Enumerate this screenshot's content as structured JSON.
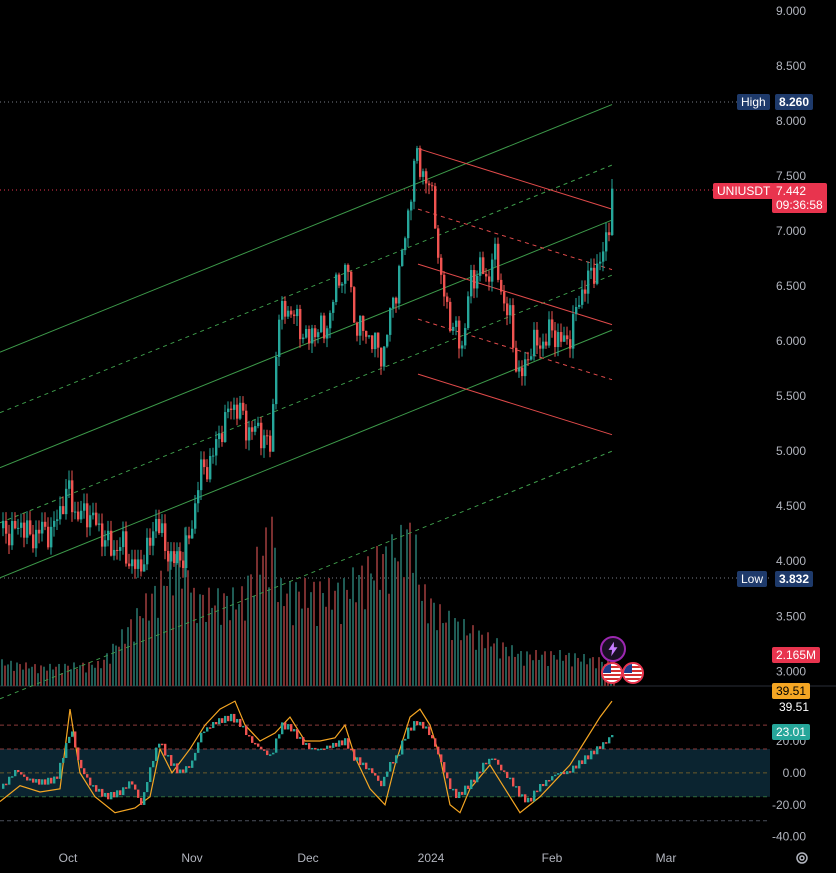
{
  "symbol": "UNIUSDT",
  "last_price": "7.442",
  "countdown": "09:36:58",
  "high": {
    "label": "High",
    "value": "8.260"
  },
  "low": {
    "label": "Low",
    "value": "3.832"
  },
  "volume": "2.165M",
  "colors": {
    "up": "#26a69a",
    "down": "#ef5350",
    "high_bg": "#1e3a6b",
    "price_tag": "#e8344e",
    "channel_green": "#3d9a4a",
    "channel_red": "#e04a4a",
    "osc_line": "#f5a623",
    "osc_fill": "#0b2430"
  },
  "chart_data": {
    "type": "candlestick",
    "price_axis": {
      "ticks": [
        "9.000",
        "8.500",
        "8.000",
        "7.500",
        "7.000",
        "6.500",
        "6.000",
        "5.500",
        "5.000",
        "4.500",
        "4.000",
        "3.500",
        "3.000"
      ],
      "range": [
        2.83,
        9.1
      ]
    },
    "time_axis": {
      "labels": [
        "Oct",
        "Nov",
        "Dec",
        "2024",
        "Feb",
        "Mar"
      ]
    },
    "oscillator": {
      "ticks": [
        "20.00",
        "0.00",
        "-20.00",
        "-40.00"
      ],
      "labels": {
        "upper": "39.51",
        "current": "23.01"
      },
      "range": [
        -44,
        52
      ],
      "levels": [
        30,
        15,
        0,
        -15,
        -30
      ]
    },
    "trend_points": [
      [
        0,
        4.3
      ],
      [
        10,
        4.25
      ],
      [
        20,
        4.35
      ],
      [
        30,
        4.2
      ],
      [
        40,
        4.3
      ],
      [
        50,
        4.25
      ],
      [
        60,
        4.5
      ],
      [
        68,
        4.65
      ],
      [
        75,
        4.4
      ],
      [
        85,
        4.45
      ],
      [
        95,
        4.35
      ],
      [
        103,
        4.2
      ],
      [
        112,
        4.1
      ],
      [
        122,
        4.15
      ],
      [
        130,
        3.95
      ],
      [
        138,
        3.95
      ],
      [
        147,
        4.1
      ],
      [
        155,
        4.4
      ],
      [
        163,
        4.15
      ],
      [
        172,
        4.0
      ],
      [
        182,
        4.05
      ],
      [
        190,
        4.25
      ],
      [
        198,
        4.8
      ],
      [
        206,
        4.85
      ],
      [
        215,
        5.05
      ],
      [
        222,
        5.25
      ],
      [
        230,
        5.4
      ],
      [
        238,
        5.4
      ],
      [
        245,
        5.2
      ],
      [
        253,
        5.2
      ],
      [
        262,
        5.15
      ],
      [
        270,
        5.0
      ],
      [
        276,
        6.15
      ],
      [
        284,
        6.3
      ],
      [
        292,
        6.25
      ],
      [
        300,
        6.1
      ],
      [
        308,
        6.0
      ],
      [
        316,
        6.15
      ],
      [
        324,
        6.05
      ],
      [
        332,
        6.4
      ],
      [
        340,
        6.6
      ],
      [
        347,
        6.65
      ],
      [
        353,
        6.2
      ],
      [
        360,
        6.1
      ],
      [
        368,
        6.05
      ],
      [
        375,
        5.95
      ],
      [
        382,
        5.85
      ],
      [
        390,
        6.3
      ],
      [
        397,
        6.55
      ],
      [
        403,
        6.9
      ],
      [
        409,
        7.3
      ],
      [
        415,
        7.7
      ],
      [
        421,
        7.55
      ],
      [
        427,
        7.4
      ],
      [
        433,
        7.3
      ],
      [
        438,
        6.6
      ],
      [
        444,
        6.4
      ],
      [
        450,
        6.15
      ],
      [
        456,
        6.05
      ],
      [
        462,
        5.95
      ],
      [
        468,
        6.5
      ],
      [
        474,
        6.6
      ],
      [
        480,
        6.7
      ],
      [
        486,
        6.5
      ],
      [
        492,
        6.85
      ],
      [
        497,
        6.6
      ],
      [
        503,
        6.35
      ],
      [
        509,
        6.2
      ],
      [
        514,
        5.85
      ],
      [
        519,
        5.65
      ],
      [
        525,
        5.8
      ],
      [
        531,
        6.0
      ],
      [
        537,
        5.95
      ],
      [
        543,
        6.0
      ],
      [
        549,
        6.1
      ],
      [
        555,
        6.05
      ],
      [
        561,
        6.0
      ],
      [
        567,
        6.0
      ],
      [
        573,
        6.2
      ],
      [
        579,
        6.4
      ],
      [
        585,
        6.55
      ],
      [
        591,
        6.6
      ],
      [
        597,
        6.7
      ],
      [
        603,
        6.8
      ],
      [
        608,
        7.1
      ],
      [
        612,
        7.45
      ]
    ],
    "volume_points": [
      [
        0,
        0.15
      ],
      [
        40,
        0.12
      ],
      [
        100,
        0.14
      ],
      [
        155,
        0.6
      ],
      [
        185,
        0.9
      ],
      [
        192,
        0.55
      ],
      [
        240,
        0.55
      ],
      [
        272,
        1.0
      ],
      [
        278,
        0.6
      ],
      [
        340,
        0.6
      ],
      [
        400,
        0.9
      ],
      [
        412,
        1.0
      ],
      [
        420,
        0.6
      ],
      [
        440,
        0.45
      ],
      [
        470,
        0.35
      ],
      [
        520,
        0.2
      ],
      [
        560,
        0.2
      ],
      [
        612,
        0.15
      ]
    ],
    "oscillator_points": [
      [
        0,
        -10
      ],
      [
        15,
        2
      ],
      [
        25,
        -4
      ],
      [
        40,
        -6
      ],
      [
        55,
        -4
      ],
      [
        70,
        28
      ],
      [
        78,
        5
      ],
      [
        90,
        -8
      ],
      [
        105,
        -15
      ],
      [
        120,
        -12
      ],
      [
        130,
        -5
      ],
      [
        140,
        -20
      ],
      [
        150,
        5
      ],
      [
        158,
        20
      ],
      [
        168,
        8
      ],
      [
        178,
        0
      ],
      [
        190,
        5
      ],
      [
        200,
        25
      ],
      [
        215,
        32
      ],
      [
        230,
        35
      ],
      [
        240,
        30
      ],
      [
        250,
        20
      ],
      [
        260,
        15
      ],
      [
        270,
        10
      ],
      [
        280,
        30
      ],
      [
        290,
        28
      ],
      [
        300,
        20
      ],
      [
        310,
        15
      ],
      [
        320,
        15
      ],
      [
        335,
        18
      ],
      [
        345,
        20
      ],
      [
        352,
        10
      ],
      [
        362,
        5
      ],
      [
        372,
        0
      ],
      [
        380,
        -8
      ],
      [
        388,
        5
      ],
      [
        396,
        10
      ],
      [
        405,
        25
      ],
      [
        415,
        32
      ],
      [
        425,
        28
      ],
      [
        432,
        20
      ],
      [
        438,
        10
      ],
      [
        448,
        -8
      ],
      [
        456,
        -15
      ],
      [
        464,
        -10
      ],
      [
        472,
        -5
      ],
      [
        482,
        5
      ],
      [
        492,
        10
      ],
      [
        500,
        2
      ],
      [
        510,
        -5
      ],
      [
        520,
        -15
      ],
      [
        528,
        -18
      ],
      [
        536,
        -10
      ],
      [
        546,
        -5
      ],
      [
        556,
        0
      ],
      [
        566,
        0
      ],
      [
        576,
        5
      ],
      [
        586,
        10
      ],
      [
        596,
        15
      ],
      [
        606,
        20
      ],
      [
        612,
        25
      ]
    ],
    "oscillator_upper": [
      [
        0,
        -18
      ],
      [
        20,
        -8
      ],
      [
        40,
        -12
      ],
      [
        60,
        -10
      ],
      [
        70,
        40
      ],
      [
        80,
        0
      ],
      [
        95,
        -15
      ],
      [
        115,
        -25
      ],
      [
        135,
        -22
      ],
      [
        150,
        -15
      ],
      [
        160,
        15
      ],
      [
        172,
        0
      ],
      [
        190,
        15
      ],
      [
        205,
        30
      ],
      [
        220,
        40
      ],
      [
        235,
        45
      ],
      [
        245,
        30
      ],
      [
        260,
        20
      ],
      [
        275,
        25
      ],
      [
        290,
        35
      ],
      [
        305,
        20
      ],
      [
        320,
        20
      ],
      [
        335,
        22
      ],
      [
        345,
        30
      ],
      [
        355,
        10
      ],
      [
        370,
        -10
      ],
      [
        385,
        -20
      ],
      [
        395,
        5
      ],
      [
        410,
        35
      ],
      [
        420,
        40
      ],
      [
        430,
        30
      ],
      [
        440,
        10
      ],
      [
        450,
        -20
      ],
      [
        460,
        -25
      ],
      [
        470,
        -10
      ],
      [
        490,
        5
      ],
      [
        505,
        -10
      ],
      [
        520,
        -25
      ],
      [
        530,
        -20
      ],
      [
        540,
        -15
      ],
      [
        555,
        -5
      ],
      [
        570,
        5
      ],
      [
        585,
        20
      ],
      [
        600,
        35
      ],
      [
        612,
        45
      ]
    ],
    "channels": {
      "green": {
        "slope_start": [
          0,
          5.9
        ],
        "slope_end": [
          612,
          8.15
        ],
        "offsets": [
          0,
          -0.55,
          -1.05,
          -1.55,
          -2.05,
          -3.15
        ]
      },
      "red": {
        "slope_start": [
          418,
          7.75
        ],
        "slope_end": [
          612,
          7.2
        ],
        "offsets": [
          0,
          -0.55,
          -1.05,
          -1.55,
          -2.05
        ]
      }
    }
  }
}
